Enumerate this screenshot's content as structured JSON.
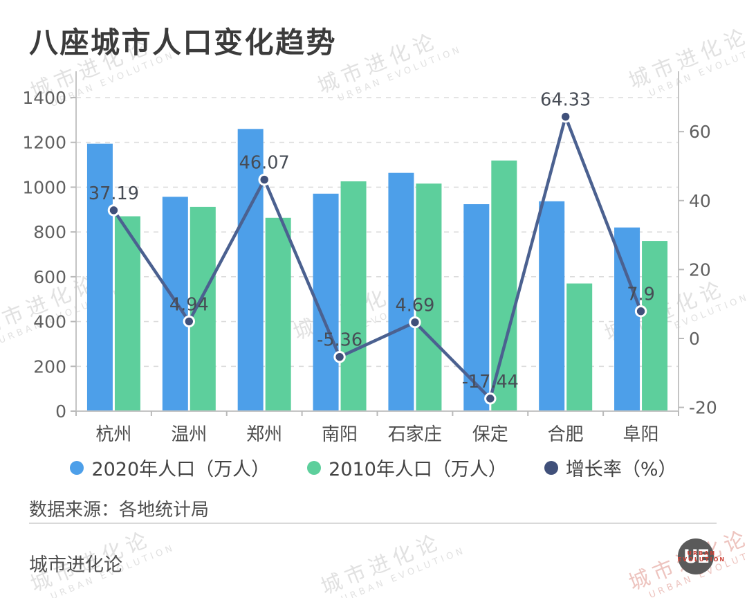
{
  "page": {
    "title": "八座城市人口变化趋势",
    "source_note": "数据来源：各地统计局",
    "brand": "城市进化论",
    "watermark": {
      "line1": "城市进化论",
      "line2": "URBAN EVOLUTION"
    },
    "logo": {
      "monogram": "UE",
      "caption1": "URBAN",
      "caption2": "EVOLUTION"
    }
  },
  "legend": {
    "items": [
      {
        "label": "2020年人口（万人）",
        "color": "#4D9FE9"
      },
      {
        "label": "2010年人口（万人）",
        "color": "#5DCF9C"
      },
      {
        "label": "增长率（%）",
        "color": "#40507A"
      }
    ]
  },
  "colors": {
    "bar_2020": "#4D9FE9",
    "bar_2010": "#5DCF9C",
    "growth_line": "#4B6190",
    "growth_marker": "#40507A",
    "growth_label": "#474C55",
    "title": "#3B3B3B",
    "axis_text": "#5F5F5F",
    "category_text": "#4C4C4C",
    "legend_text": "#434343",
    "grid": "#DCDCDC",
    "axis_line": "#C4C4C4",
    "tick": "#B9B9B9",
    "footer_text": "#4F4F4F",
    "divider": "#D9D9D9",
    "logo_circle": "#5A5A5A",
    "logo_caption_red": "#CC4237",
    "watermark_gray": "#C9C9C9",
    "watermark_red": "#E0948C"
  },
  "chart_data": {
    "type": "combo",
    "title": "八座城市人口变化趋势",
    "categories": [
      "杭州",
      "温州",
      "郑州",
      "南阳",
      "石家庄",
      "保定",
      "合肥",
      "阜阳"
    ],
    "series": [
      {
        "name": "2020年人口（万人）",
        "type": "bar",
        "axis": "left",
        "values": [
          1194,
          957,
          1260,
          971,
          1064,
          924,
          937,
          820
        ]
      },
      {
        "name": "2010年人口（万人）",
        "type": "bar",
        "axis": "left",
        "values": [
          870,
          912,
          863,
          1026,
          1016,
          1119,
          570,
          760
        ]
      },
      {
        "name": "增长率（%）",
        "type": "line",
        "axis": "right",
        "labels_shown": true,
        "values": [
          37.19,
          4.94,
          46.07,
          -5.36,
          4.69,
          -17.44,
          64.33,
          7.9
        ]
      }
    ],
    "left_axis": {
      "min": 0,
      "max": 1400,
      "ticks": [
        0,
        200,
        400,
        600,
        800,
        1000,
        1200,
        1400
      ]
    },
    "right_axis": {
      "ticks": [
        -20,
        0,
        20,
        40,
        60
      ]
    },
    "grid": "horizontal-dashed",
    "legend_position": "bottom"
  }
}
